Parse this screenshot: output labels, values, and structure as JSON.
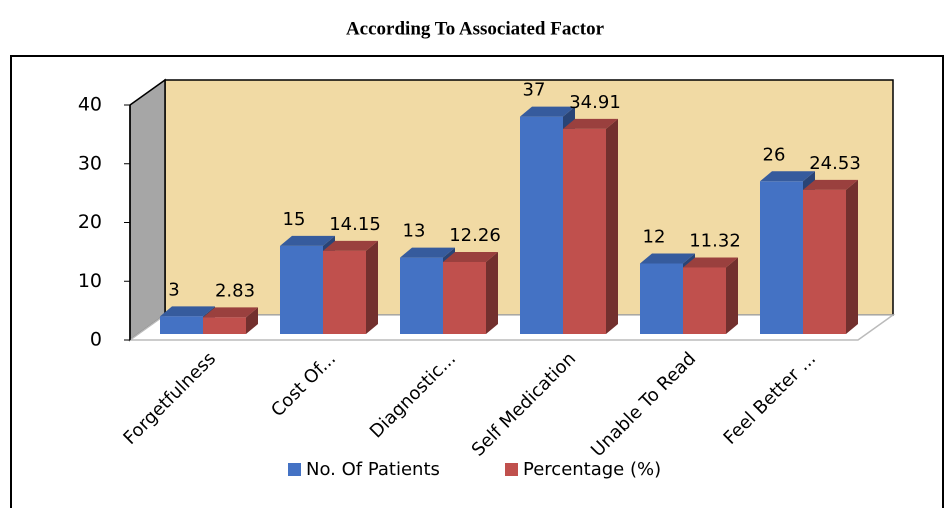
{
  "chart_data": {
    "type": "bar3d",
    "title": "According To Associated Factor",
    "categories": [
      "Forgetfulness",
      "Cost Of...",
      "Diagnostic...",
      "Self Medication",
      "Unable To Read",
      "Feel Better ..."
    ],
    "series": [
      {
        "name": "No. Of Patients",
        "color": "#4472c4",
        "values": [
          3,
          15,
          13,
          37,
          12,
          26
        ]
      },
      {
        "name": "Percentage (%)",
        "color": "#c0504d",
        "values": [
          2.83,
          14.15,
          12.26,
          34.91,
          11.32,
          24.53
        ]
      }
    ],
    "ylim": [
      0,
      40
    ],
    "yticks": [
      0,
      10,
      20,
      30,
      40
    ],
    "legend": "bottom"
  }
}
